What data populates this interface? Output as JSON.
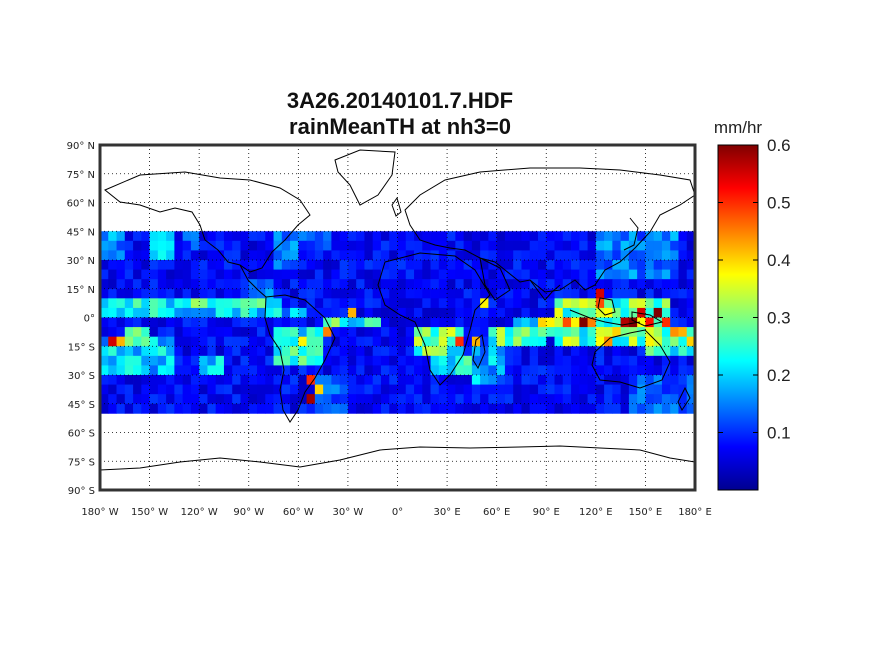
{
  "figure": {
    "title_line1": "3A26.20140101.7.HDF",
    "title_line2": "rainMeanTH at nh3=0"
  },
  "map": {
    "projection": "equirectangular",
    "lon_range": [
      -180,
      180
    ],
    "lat_range": [
      -90,
      90
    ],
    "data_lat_range": [
      -50,
      45
    ],
    "grid_resolution_deg": 5,
    "graticule": "dotted",
    "lat_ticks": [
      {
        "value": 90,
        "deg": "90",
        "hemi": "N"
      },
      {
        "value": 75,
        "deg": "75",
        "hemi": "N"
      },
      {
        "value": 60,
        "deg": "60",
        "hemi": "N"
      },
      {
        "value": 45,
        "deg": "45",
        "hemi": "N"
      },
      {
        "value": 30,
        "deg": "30",
        "hemi": "N"
      },
      {
        "value": 15,
        "deg": "15",
        "hemi": "N"
      },
      {
        "value": 0,
        "deg": "0",
        "hemi": ""
      },
      {
        "value": -15,
        "deg": "15",
        "hemi": "S"
      },
      {
        "value": -30,
        "deg": "30",
        "hemi": "S"
      },
      {
        "value": -45,
        "deg": "45",
        "hemi": "S"
      },
      {
        "value": -60,
        "deg": "60",
        "hemi": "S"
      },
      {
        "value": -75,
        "deg": "75",
        "hemi": "S"
      },
      {
        "value": -90,
        "deg": "90",
        "hemi": "S"
      }
    ],
    "lon_ticks": [
      {
        "value": -180,
        "deg": "180",
        "hemi": "W"
      },
      {
        "value": -150,
        "deg": "150",
        "hemi": "W"
      },
      {
        "value": -120,
        "deg": "120",
        "hemi": "W"
      },
      {
        "value": -90,
        "deg": "90",
        "hemi": "W"
      },
      {
        "value": -60,
        "deg": "60",
        "hemi": "W"
      },
      {
        "value": -30,
        "deg": "30",
        "hemi": "W"
      },
      {
        "value": 0,
        "deg": "0",
        "hemi": ""
      },
      {
        "value": 30,
        "deg": "30",
        "hemi": "E"
      },
      {
        "value": 60,
        "deg": "60",
        "hemi": "E"
      },
      {
        "value": 90,
        "deg": "90",
        "hemi": "E"
      },
      {
        "value": 120,
        "deg": "120",
        "hemi": "E"
      },
      {
        "value": 150,
        "deg": "150",
        "hemi": "E"
      },
      {
        "value": 180,
        "deg": "180",
        "hemi": "E"
      }
    ]
  },
  "colorbar": {
    "unit": "mm/hr",
    "colormap": "jet",
    "range": [
      0,
      0.6
    ],
    "ticks": [
      {
        "value": 0.1,
        "label": "0.1"
      },
      {
        "value": 0.2,
        "label": "0.2"
      },
      {
        "value": 0.3,
        "label": "0.3"
      },
      {
        "value": 0.4,
        "label": "0.4"
      },
      {
        "value": 0.5,
        "label": "0.5"
      },
      {
        "value": 0.6,
        "label": "0.6"
      }
    ]
  },
  "rain_features": [
    {
      "lon": [
        -180,
        -70
      ],
      "lat": [
        0,
        10
      ],
      "value": 0.24
    },
    {
      "lon": [
        -125,
        -80
      ],
      "lat": [
        5,
        10
      ],
      "value": 0.28
    },
    {
      "lon": [
        -150,
        -135
      ],
      "lat": [
        30,
        45
      ],
      "value": 0.2
    },
    {
      "lon": [
        -180,
        -165
      ],
      "lat": [
        30,
        45
      ],
      "value": 0.17
    },
    {
      "lon": [
        -130,
        -120
      ],
      "lat": [
        35,
        45
      ],
      "value": 0.14
    },
    {
      "lon": [
        -75,
        -60
      ],
      "lat": [
        25,
        45
      ],
      "value": 0.16
    },
    {
      "lon": [
        -60,
        -40
      ],
      "lat": [
        35,
        45
      ],
      "value": 0.13
    },
    {
      "lon": [
        -90,
        -75
      ],
      "lat": [
        10,
        20
      ],
      "value": 0.18
    },
    {
      "lon": [
        -180,
        -135
      ],
      "lat": [
        -30,
        -10
      ],
      "value": 0.22
    },
    {
      "lon": [
        -165,
        -150
      ],
      "lat": [
        -15,
        -5
      ],
      "value": 0.26
    },
    {
      "lon": [
        -120,
        -105
      ],
      "lat": [
        -30,
        -20
      ],
      "value": 0.22
    },
    {
      "lon": [
        -75,
        -45
      ],
      "lat": [
        -25,
        -5
      ],
      "value": 0.26
    },
    {
      "lon": [
        -70,
        -55
      ],
      "lat": [
        5,
        0
      ],
      "value": 0.2
    },
    {
      "lon": [
        -45,
        -10
      ],
      "lat": [
        -5,
        0
      ],
      "value": 0.28
    },
    {
      "lon": [
        -50,
        -30
      ],
      "lat": [
        -50,
        -30
      ],
      "value": 0.15
    },
    {
      "lon": [
        10,
        40
      ],
      "lat": [
        -20,
        -5
      ],
      "value": 0.3
    },
    {
      "lon": [
        20,
        45
      ],
      "lat": [
        -30,
        -20
      ],
      "value": 0.24
    },
    {
      "lon": [
        45,
        65
      ],
      "lat": [
        -35,
        -15
      ],
      "value": 0.2
    },
    {
      "lon": [
        55,
        90
      ],
      "lat": [
        -15,
        -5
      ],
      "value": 0.3
    },
    {
      "lon": [
        70,
        100
      ],
      "lat": [
        -10,
        0
      ],
      "value": 0.27
    },
    {
      "lon": [
        95,
        165
      ],
      "lat": [
        -15,
        10
      ],
      "value": 0.32
    },
    {
      "lon": [
        120,
        170
      ],
      "lat": [
        20,
        45
      ],
      "value": 0.16
    },
    {
      "lon": [
        150,
        180
      ],
      "lat": [
        -20,
        -5
      ],
      "value": 0.3
    },
    {
      "lon": [
        140,
        180
      ],
      "lat": [
        -50,
        -30
      ],
      "value": 0.14
    }
  ],
  "rain_hotspots": [
    {
      "lon": -175,
      "lat": -15,
      "value": 0.55
    },
    {
      "lon": -170,
      "lat": -15,
      "value": 0.42
    },
    {
      "lon": -55,
      "lat": -35,
      "value": 0.5
    },
    {
      "lon": -55,
      "lat": -45,
      "value": 0.58
    },
    {
      "lon": -50,
      "lat": -40,
      "value": 0.4
    },
    {
      "lon": -45,
      "lat": -10,
      "value": 0.45
    },
    {
      "lon": -60,
      "lat": -15,
      "value": 0.38
    },
    {
      "lon": -30,
      "lat": 0,
      "value": 0.42
    },
    {
      "lon": 30,
      "lat": -10,
      "value": 0.36
    },
    {
      "lon": 35,
      "lat": -15,
      "value": 0.5
    },
    {
      "lon": 45,
      "lat": -15,
      "value": 0.42
    },
    {
      "lon": 50,
      "lat": 5,
      "value": 0.38
    },
    {
      "lon": 85,
      "lat": -5,
      "value": 0.4
    },
    {
      "lon": 90,
      "lat": -5,
      "value": 0.38
    },
    {
      "lon": 100,
      "lat": -5,
      "value": 0.48
    },
    {
      "lon": 105,
      "lat": -5,
      "value": 0.38
    },
    {
      "lon": 110,
      "lat": -5,
      "value": 0.6
    },
    {
      "lon": 115,
      "lat": -5,
      "value": 0.45
    },
    {
      "lon": 120,
      "lat": 10,
      "value": 0.55
    },
    {
      "lon": 120,
      "lat": 5,
      "value": 0.48
    },
    {
      "lon": 125,
      "lat": -15,
      "value": 0.44
    },
    {
      "lon": 130,
      "lat": -10,
      "value": 0.4
    },
    {
      "lon": 135,
      "lat": -5,
      "value": 0.57
    },
    {
      "lon": 140,
      "lat": -5,
      "value": 0.6
    },
    {
      "lon": 145,
      "lat": 0,
      "value": 0.55
    },
    {
      "lon": 150,
      "lat": -5,
      "value": 0.52
    },
    {
      "lon": 155,
      "lat": 0,
      "value": 0.6
    },
    {
      "lon": 160,
      "lat": -5,
      "value": 0.5
    },
    {
      "lon": 165,
      "lat": -10,
      "value": 0.44
    },
    {
      "lon": 170,
      "lat": -10,
      "value": 0.42
    },
    {
      "lon": 175,
      "lat": -15,
      "value": 0.4
    },
    {
      "lon": 150,
      "lat": -15,
      "value": 0.38
    },
    {
      "lon": 140,
      "lat": -15,
      "value": 0.36
    }
  ]
}
